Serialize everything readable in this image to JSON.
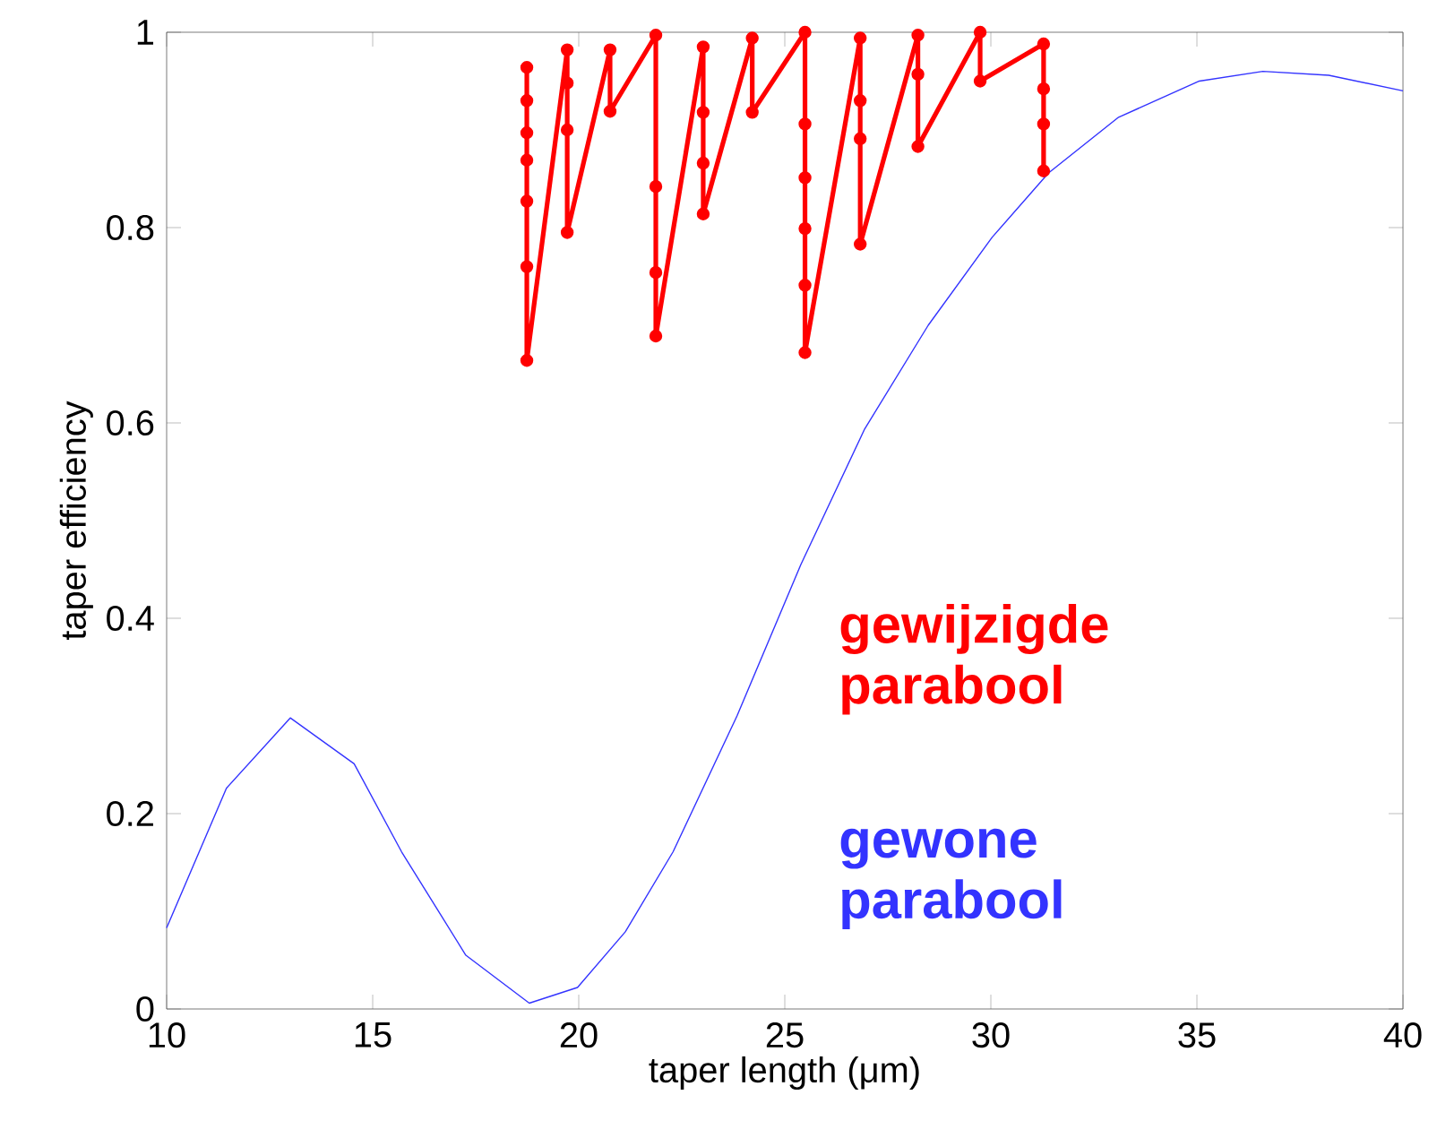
{
  "chart_data": {
    "type": "line",
    "xlabel": "taper length (μm)",
    "ylabel": "taper efficiency",
    "xlim": [
      10,
      40
    ],
    "ylim": [
      0,
      1
    ],
    "xticks": [
      10,
      15,
      20,
      25,
      30,
      35,
      40
    ],
    "yticks": [
      0,
      0.2,
      0.4,
      0.6,
      0.8,
      1
    ],
    "grid": false,
    "legend": false,
    "series": [
      {
        "name": "gewijzigde parabool",
        "color": "#ff0000",
        "marker": "circle",
        "x": [
          18.74,
          18.74,
          18.74,
          18.74,
          18.74,
          18.74,
          18.74,
          19.72,
          19.72,
          19.72,
          19.72,
          20.76,
          20.76,
          21.87,
          21.87,
          21.87,
          21.87,
          23.02,
          23.02,
          23.02,
          23.02,
          24.21,
          24.21,
          25.49,
          25.49,
          25.49,
          25.49,
          25.49,
          25.49,
          26.83,
          26.83,
          26.83,
          26.83,
          28.23,
          28.23,
          28.23,
          29.74,
          29.74,
          31.28,
          31.28,
          31.28,
          31.28
        ],
        "values": [
          0.964,
          0.93,
          0.897,
          0.869,
          0.827,
          0.76,
          0.664,
          0.982,
          0.948,
          0.9,
          0.795,
          0.982,
          0.919,
          0.997,
          0.842,
          0.754,
          0.689,
          0.985,
          0.918,
          0.866,
          0.814,
          0.994,
          0.918,
          1.0,
          0.906,
          0.851,
          0.799,
          0.741,
          0.672,
          0.994,
          0.93,
          0.891,
          0.783,
          0.997,
          0.957,
          0.883,
          1.0,
          0.95,
          0.988,
          0.942,
          0.906,
          0.858
        ]
      },
      {
        "name": "gewone parabool",
        "color": "#3333ff",
        "marker": "none",
        "x": [
          10,
          11.45,
          13.0,
          14.55,
          15.7,
          17.26,
          18.8,
          19.97,
          21.13,
          22.29,
          23.84,
          25.39,
          26.94,
          28.48,
          30.03,
          31.4,
          33.1,
          35.06,
          36.6,
          38.2,
          40
        ],
        "values": [
          0.083,
          0.226,
          0.298,
          0.251,
          0.161,
          0.055,
          0.006,
          0.022,
          0.079,
          0.161,
          0.3,
          0.455,
          0.594,
          0.7,
          0.79,
          0.856,
          0.913,
          0.95,
          0.96,
          0.956,
          0.94
        ]
      }
    ]
  }
}
